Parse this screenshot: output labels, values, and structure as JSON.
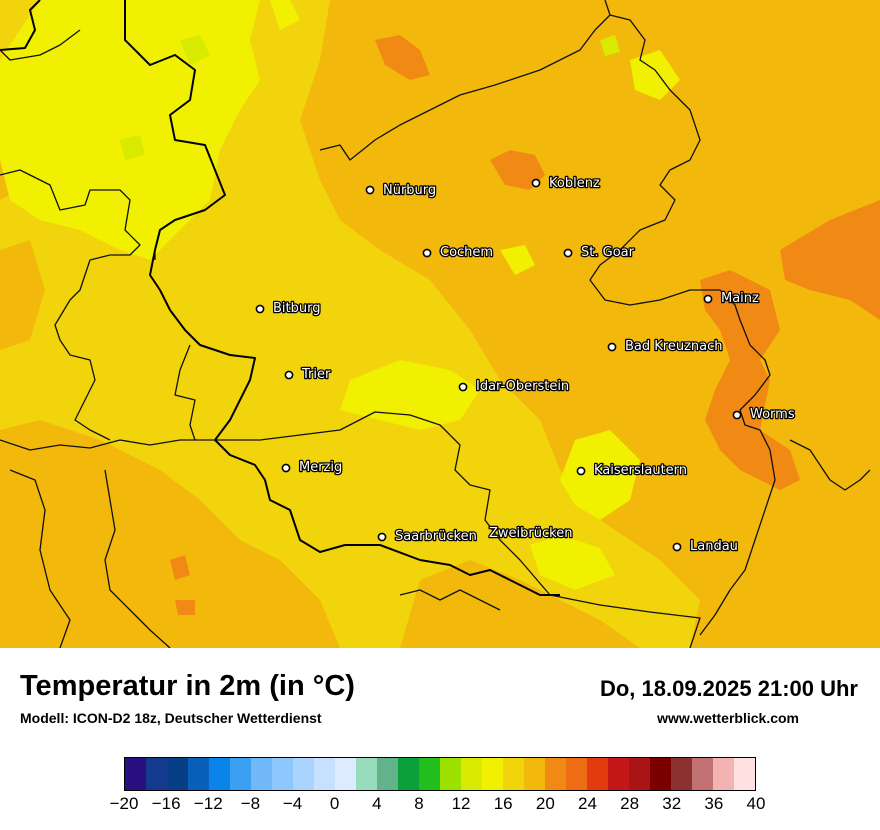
{
  "map": {
    "cities": [
      {
        "name": "Nürburg"
      },
      {
        "name": "Koblenz"
      },
      {
        "name": "Cochem"
      },
      {
        "name": "St. Goar"
      },
      {
        "name": "Bitburg"
      },
      {
        "name": "Mainz"
      },
      {
        "name": "Bad Kreuznach"
      },
      {
        "name": "Trier"
      },
      {
        "name": "Idar-Oberstein"
      },
      {
        "name": "Worms"
      },
      {
        "name": "Merzig"
      },
      {
        "name": "Kaiserslautern"
      },
      {
        "name": "Saarbrücken"
      },
      {
        "name": "Zweibrücken"
      },
      {
        "name": "Landau"
      }
    ],
    "temperature_colors": {
      "t14_16": "#d8ea00",
      "t16_18": "#f0f000",
      "t18_20": "#f2d40c",
      "t20_22": "#f2b80c",
      "t22_24": "#f08a14"
    }
  },
  "header": {
    "title": "Temperatur in 2m (in °C)",
    "model": "Modell: ICON-D2 18z, Deutscher Wetterdienst",
    "datetime": "Do, 18.09.2025 21:00 Uhr",
    "website": "www.wetterblick.com"
  },
  "legend": {
    "min": -20,
    "max": 40,
    "tick_labels": [
      "−20",
      "−16",
      "−12",
      "−8",
      "−4",
      "0",
      "4",
      "8",
      "12",
      "16",
      "20",
      "24",
      "28",
      "32",
      "36",
      "40"
    ],
    "colors": [
      "#2a0f80",
      "#133a8c",
      "#073f86",
      "#0860b8",
      "#0b84ea",
      "#3ba0f2",
      "#71b9f8",
      "#8ec7fb",
      "#aad4fd",
      "#c6e0fe",
      "#dcebfe",
      "#96dcbd",
      "#62b38a",
      "#0ba03a",
      "#22be1e",
      "#9ee000",
      "#d8ea00",
      "#f0f000",
      "#f2d40c",
      "#f2b80c",
      "#f08a14",
      "#ee6c14",
      "#e43a10",
      "#c41818",
      "#aa1414",
      "#7a0000",
      "#8c3030",
      "#c07272",
      "#f3b3b3",
      "#ffe1e1"
    ]
  }
}
